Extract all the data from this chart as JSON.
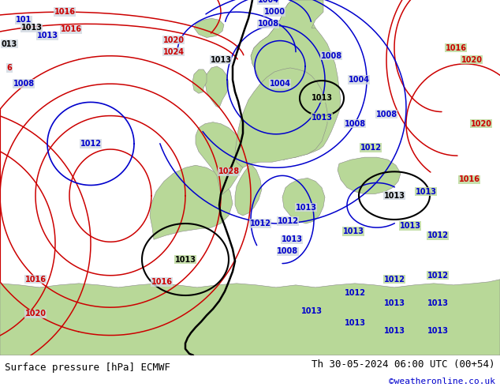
{
  "title_left": "Surface pressure [hPa] ECMWF",
  "title_right": "Th 30-05-2024 06:00 UTC (00+54)",
  "credit": "©weatheronline.co.uk",
  "bg_ocean_color": "#d0d8e0",
  "land_color": "#b8d898",
  "fig_width": 6.34,
  "fig_height": 4.9,
  "footer_bg": "#e0e0e0",
  "title_fontsize": 9,
  "credit_color": "#0000cc",
  "credit_fontsize": 8,
  "red": "#cc0000",
  "blue": "#0000cc",
  "black": "#000000"
}
